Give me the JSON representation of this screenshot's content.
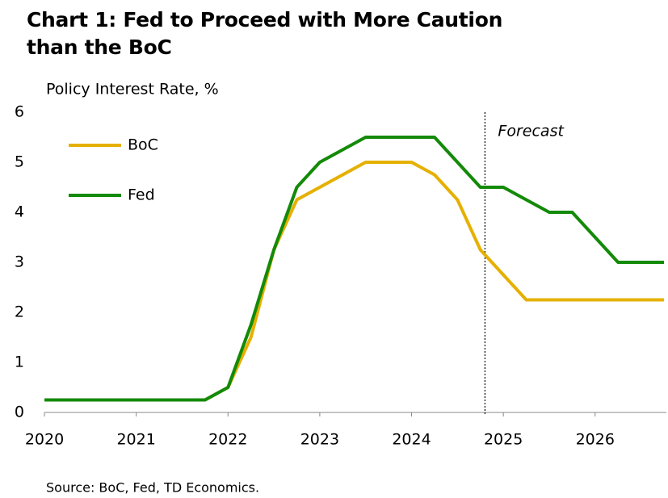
{
  "chart_data": {
    "type": "line",
    "title": "Chart 1: Fed to Proceed with More Caution than the BoC",
    "y_label": "Policy Interest Rate, %",
    "source": "Source: BoC, Fed, TD Economics.",
    "x": [
      2020,
      2020.25,
      2020.5,
      2020.75,
      2021,
      2021.25,
      2021.5,
      2021.75,
      2022,
      2022.25,
      2022.5,
      2022.75,
      2023,
      2023.25,
      2023.5,
      2023.75,
      2024,
      2024.25,
      2024.5,
      2024.75,
      2025,
      2025.25,
      2025.5,
      2025.75,
      2026,
      2026.25,
      2026.5,
      2026.75
    ],
    "series": [
      {
        "name": "BoC",
        "color": "#e6b000",
        "values": [
          0.25,
          0.25,
          0.25,
          0.25,
          0.25,
          0.25,
          0.25,
          0.25,
          0.5,
          1.5,
          3.25,
          4.25,
          4.5,
          4.75,
          5.0,
          5.0,
          5.0,
          4.75,
          4.25,
          3.25,
          2.75,
          2.25,
          2.25,
          2.25,
          2.25,
          2.25,
          2.25,
          2.25
        ]
      },
      {
        "name": "Fed",
        "color": "#138a08",
        "values": [
          0.25,
          0.25,
          0.25,
          0.25,
          0.25,
          0.25,
          0.25,
          0.25,
          0.5,
          1.75,
          3.25,
          4.5,
          5.0,
          5.25,
          5.5,
          5.5,
          5.5,
          5.5,
          5.0,
          4.5,
          4.5,
          4.25,
          4.0,
          4.0,
          3.5,
          3.0,
          3.0,
          3.0
        ]
      }
    ],
    "forecast": {
      "x": 2024.8,
      "label": "Forecast"
    },
    "xlim": [
      2020,
      2026.75
    ],
    "xticks": [
      2020,
      2021,
      2022,
      2023,
      2024,
      2025,
      2026
    ],
    "ylim": [
      0,
      6
    ],
    "yticks": [
      0,
      1,
      2,
      3,
      4,
      5,
      6
    ],
    "grid": false,
    "legend": "upper left"
  }
}
